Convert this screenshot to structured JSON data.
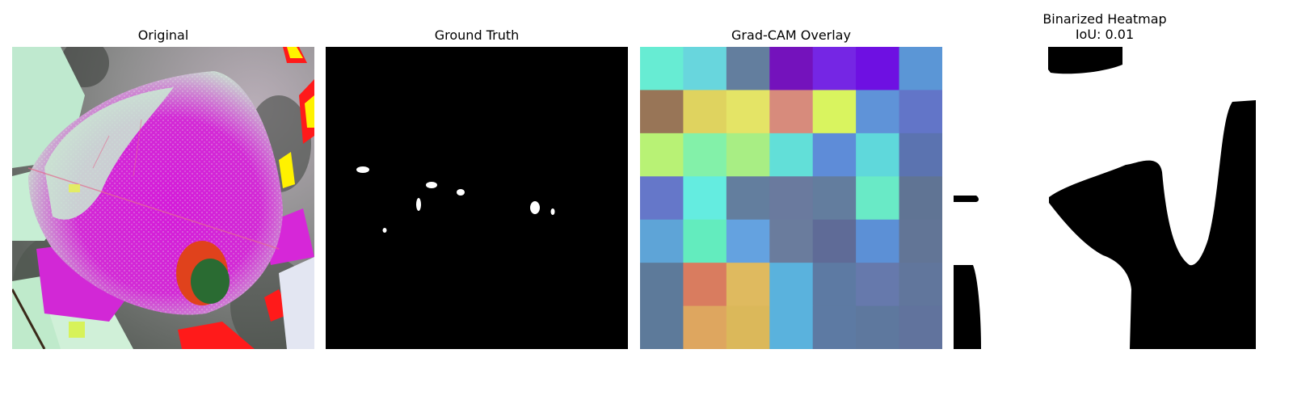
{
  "figure": {
    "panels": [
      {
        "id": "original",
        "title": "Original"
      },
      {
        "id": "ground-truth",
        "title": "Ground Truth"
      },
      {
        "id": "gradcam",
        "title": "Grad-CAM Overlay"
      },
      {
        "id": "binarized",
        "title_line1": "Binarized Heatmap",
        "title_line2": "IoU: 0.01"
      }
    ]
  },
  "gradcam_grid": {
    "rows": 7,
    "cols": 7,
    "colors": [
      [
        "#67ecd3",
        "#68d6dd",
        "#637e9e",
        "#7412bc",
        "#7526e4",
        "#6e10e2",
        "#5b96d6"
      ],
      [
        "#987557",
        "#dfd35f",
        "#e4e466",
        "#d78b7c",
        "#d9f45f",
        "#5f93d8",
        "#6275c8"
      ],
      [
        "#b8f275",
        "#83f1a9",
        "#a8ee84",
        "#62dfd8",
        "#5e8cd8",
        "#5fd8db",
        "#5b73b0"
      ],
      [
        "#6577c9",
        "#64ece0",
        "#637e9e",
        "#6a7a9e",
        "#637d9e",
        "#69eac6",
        "#607494"
      ],
      [
        "#5ea4d7",
        "#63ecbe",
        "#64a2e0",
        "#6a7c9d",
        "#5f6b97",
        "#5c90d6",
        "#627596"
      ],
      [
        "#5d7a9a",
        "#d97c5f",
        "#dfba5f",
        "#5ab2dd",
        "#5d7aa3",
        "#6679ac",
        "#61769c"
      ],
      [
        "#5d7a9a",
        "#dea65f",
        "#dbb85a",
        "#5ab2dd",
        "#5d7aa3",
        "#5e789e",
        "#61739d"
      ]
    ]
  }
}
